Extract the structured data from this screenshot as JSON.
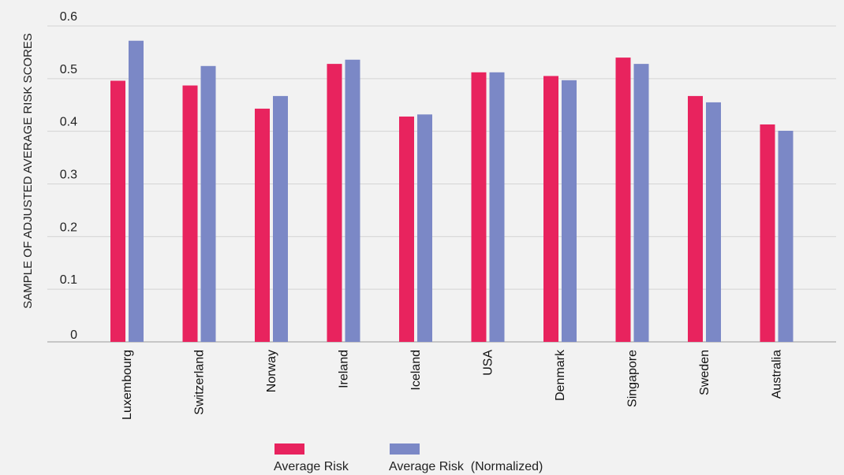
{
  "chart_data": {
    "type": "bar",
    "ylabel": "SAMPLE OF ADJUSTED AVERAGE RISK SCORES",
    "ylim": [
      0,
      0.6
    ],
    "yticks": [
      "0",
      "0.1",
      "0.2",
      "0.3",
      "0.4",
      "0.5",
      "0.6"
    ],
    "grid": true,
    "legend_position": "bottom",
    "categories": [
      "Luxembourg",
      "Switzerland",
      "Norway",
      "Ireland",
      "Iceland",
      "USA",
      "Denmark",
      "Singapore",
      "Sweden",
      "Australia"
    ],
    "series": [
      {
        "name": "Average Risk",
        "color": "#e8235e",
        "values": [
          0.496,
          0.487,
          0.443,
          0.528,
          0.428,
          0.512,
          0.505,
          0.54,
          0.467,
          0.413
        ]
      },
      {
        "name": "Average Risk  (Normalized)",
        "color": "#7b88c6",
        "values": [
          0.572,
          0.524,
          0.467,
          0.536,
          0.432,
          0.512,
          0.497,
          0.528,
          0.455,
          0.401
        ]
      }
    ]
  }
}
